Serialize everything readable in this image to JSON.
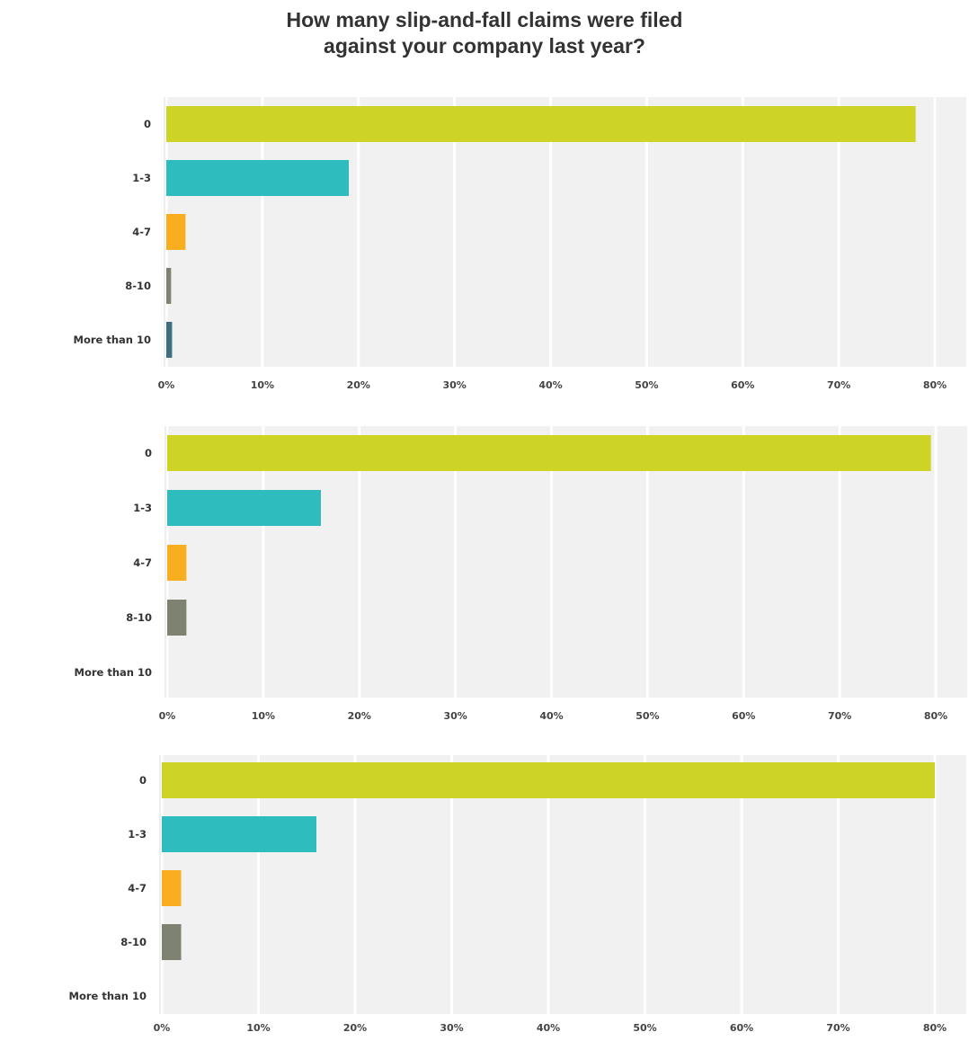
{
  "title_line1": "How many slip-and-fall claims were filed",
  "title_line2": "against your company last year?",
  "axis": {
    "min": 0,
    "max": 80,
    "step": 10,
    "tick_suffix": "%"
  },
  "colors": {
    "0": "#cdd425",
    "1-3": "#2fbcbf",
    "4-7": "#f9ae1f",
    "8-10": "#7e8270",
    "More than 10": "#3c6f80",
    "plot_bg": "#f1f1f1",
    "gridline": "#ffffff"
  },
  "chart_data": [
    {
      "type": "bar",
      "orientation": "horizontal",
      "categories": [
        "0",
        "1-3",
        "4-7",
        "8-10",
        "More than 10"
      ],
      "values": [
        78,
        19,
        2,
        0.5,
        0.6
      ],
      "xlim": [
        0,
        80
      ],
      "tick_labels": [
        "0%",
        "10%",
        "20%",
        "30%",
        "40%",
        "50%",
        "60%",
        "70%",
        "80%"
      ]
    },
    {
      "type": "bar",
      "orientation": "horizontal",
      "categories": [
        "0",
        "1-3",
        "4-7",
        "8-10",
        "More than 10"
      ],
      "values": [
        79.5,
        16,
        2,
        2,
        0
      ],
      "xlim": [
        0,
        80
      ],
      "tick_labels": [
        "0%",
        "10%",
        "20%",
        "30%",
        "40%",
        "50%",
        "60%",
        "70%",
        "80%"
      ]
    },
    {
      "type": "bar",
      "orientation": "horizontal",
      "categories": [
        "0",
        "1-3",
        "4-7",
        "8-10",
        "More than 10"
      ],
      "values": [
        80,
        16,
        2,
        2,
        0
      ],
      "xlim": [
        0,
        80
      ],
      "tick_labels": [
        "0%",
        "10%",
        "20%",
        "30%",
        "40%",
        "50%",
        "60%",
        "70%",
        "80%"
      ]
    }
  ]
}
